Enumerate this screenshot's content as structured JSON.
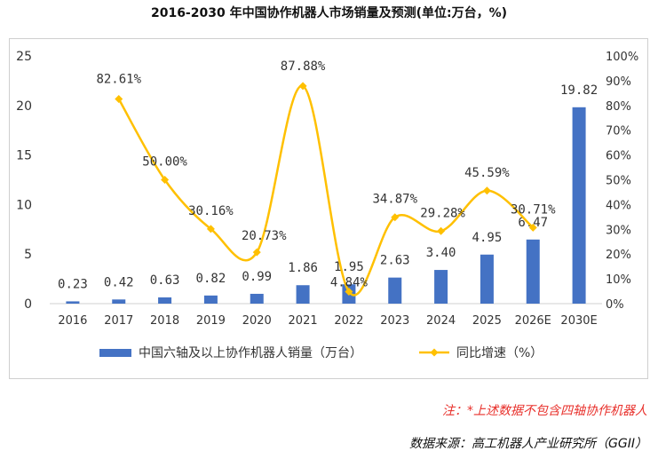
{
  "chart_data": {
    "type": "bar+line",
    "title": "2016-2030 年中国协作机器人市场销量及预测(单位:万台，%)",
    "categories": [
      "2016",
      "2017",
      "2018",
      "2019",
      "2020",
      "2021",
      "2022",
      "2023",
      "2024",
      "2025",
      "2026E",
      "2030E"
    ],
    "series": [
      {
        "name": "中国六轴及以上协作机器人销量（万台）",
        "type": "bar",
        "axis": "left",
        "color": "#4472C4",
        "values": [
          0.23,
          0.42,
          0.63,
          0.82,
          0.99,
          1.86,
          1.95,
          2.63,
          3.4,
          4.95,
          6.47,
          19.82
        ],
        "labels": [
          "0.23",
          "0.42",
          "0.63",
          "0.82",
          "0.99",
          "1.86",
          "1.95",
          "2.63",
          "3.40",
          "4.95",
          "6.47",
          "19.82"
        ]
      },
      {
        "name": "同比增速（%）",
        "type": "line",
        "axis": "right",
        "color": "#FFC000",
        "values": [
          null,
          82.61,
          50.0,
          30.16,
          20.73,
          87.88,
          4.84,
          34.87,
          29.28,
          45.59,
          30.71,
          null
        ],
        "labels": [
          "",
          "82.61%",
          "50.00%",
          "30.16%",
          "20.73%",
          "87.88%",
          "4.84%",
          "34.87%",
          "29.28%",
          "45.59%",
          "30.71%",
          ""
        ]
      }
    ],
    "y_left": {
      "min": 0,
      "max": 25,
      "ticks": [
        "0",
        "5",
        "10",
        "15",
        "20",
        "25"
      ]
    },
    "y_right": {
      "min": 0,
      "max": 100,
      "ticks": [
        "0%",
        "10%",
        "20%",
        "30%",
        "40%",
        "50%",
        "60%",
        "70%",
        "80%",
        "90%",
        "100%"
      ]
    },
    "grid": false,
    "legend": "bottom"
  },
  "footer": {
    "note": "注：*上述数据不包含四轴协作机器人",
    "source": "数据来源：高工机器人产业研究所（GGII）"
  }
}
